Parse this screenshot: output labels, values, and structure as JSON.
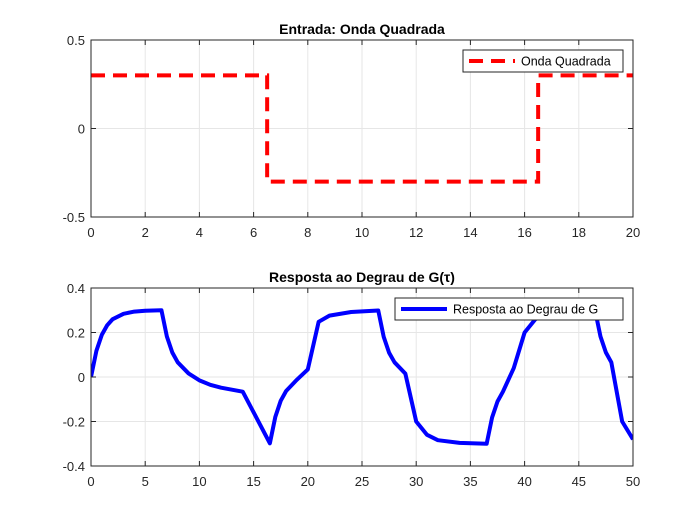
{
  "chart_data": [
    {
      "type": "line",
      "title": "Entrada: Onda Quadrada",
      "xlabel": "",
      "ylabel": "",
      "xlim": [
        0,
        20
      ],
      "ylim": [
        -0.5,
        0.5
      ],
      "xticks": [
        0,
        2,
        4,
        6,
        8,
        10,
        12,
        14,
        16,
        18,
        20
      ],
      "yticks": [
        -0.5,
        0,
        0.5
      ],
      "ytick_labels": [
        "-0.5",
        "0",
        "0.5"
      ],
      "grid": true,
      "legend_position": "top-right",
      "series": [
        {
          "name": "Onda Quadrada",
          "color": "#ff0000",
          "style": "dashed",
          "x": [
            0,
            6.5,
            6.5,
            16.5,
            16.5,
            20
          ],
          "y": [
            0.3,
            0.3,
            -0.3,
            -0.3,
            0.3,
            0.3
          ]
        }
      ]
    },
    {
      "type": "line",
      "title": "Resposta ao Degrau de G(τ)",
      "xlabel": "",
      "ylabel": "",
      "xlim": [
        0,
        50
      ],
      "ylim": [
        -0.4,
        0.4
      ],
      "xticks": [
        0,
        5,
        10,
        15,
        20,
        25,
        30,
        35,
        40,
        45,
        50
      ],
      "yticks": [
        -0.4,
        -0.2,
        0,
        0.2,
        0.4
      ],
      "ytick_labels": [
        "-0.4",
        "-0.2",
        "0",
        "0.2",
        "0.4"
      ],
      "grid": true,
      "legend_position": "top-right",
      "series": [
        {
          "name": "Resposta ao Degrau de G",
          "color": "#0000ff",
          "style": "solid",
          "x": [
            0,
            0.5,
            1,
            1.5,
            2,
            3,
            4,
            5,
            6.5,
            7,
            7.5,
            8,
            9,
            10,
            11,
            12,
            14,
            16.5,
            17,
            17.5,
            18,
            19,
            20,
            21,
            22,
            24,
            26.5,
            27,
            27.5,
            28,
            29,
            30,
            31,
            32,
            34,
            36.5,
            37,
            37.5,
            38,
            39,
            40,
            41,
            42,
            44,
            46.5,
            47,
            47.5,
            48,
            49,
            50
          ],
          "y": [
            0,
            0.118,
            0.19,
            0.233,
            0.26,
            0.284,
            0.294,
            0.298,
            0.3,
            0.182,
            0.11,
            0.066,
            0.016,
            -0.015,
            -0.035,
            -0.048,
            -0.066,
            -0.298,
            -0.18,
            -0.107,
            -0.063,
            -0.012,
            0.034,
            0.248,
            0.276,
            0.292,
            0.299,
            0.181,
            0.109,
            0.066,
            0.015,
            -0.2,
            -0.26,
            -0.284,
            -0.296,
            -0.3,
            -0.182,
            -0.11,
            -0.066,
            0.04,
            0.2,
            0.26,
            0.284,
            0.296,
            0.3,
            0.182,
            0.11,
            0.066,
            -0.2,
            -0.28
          ]
        }
      ]
    }
  ]
}
